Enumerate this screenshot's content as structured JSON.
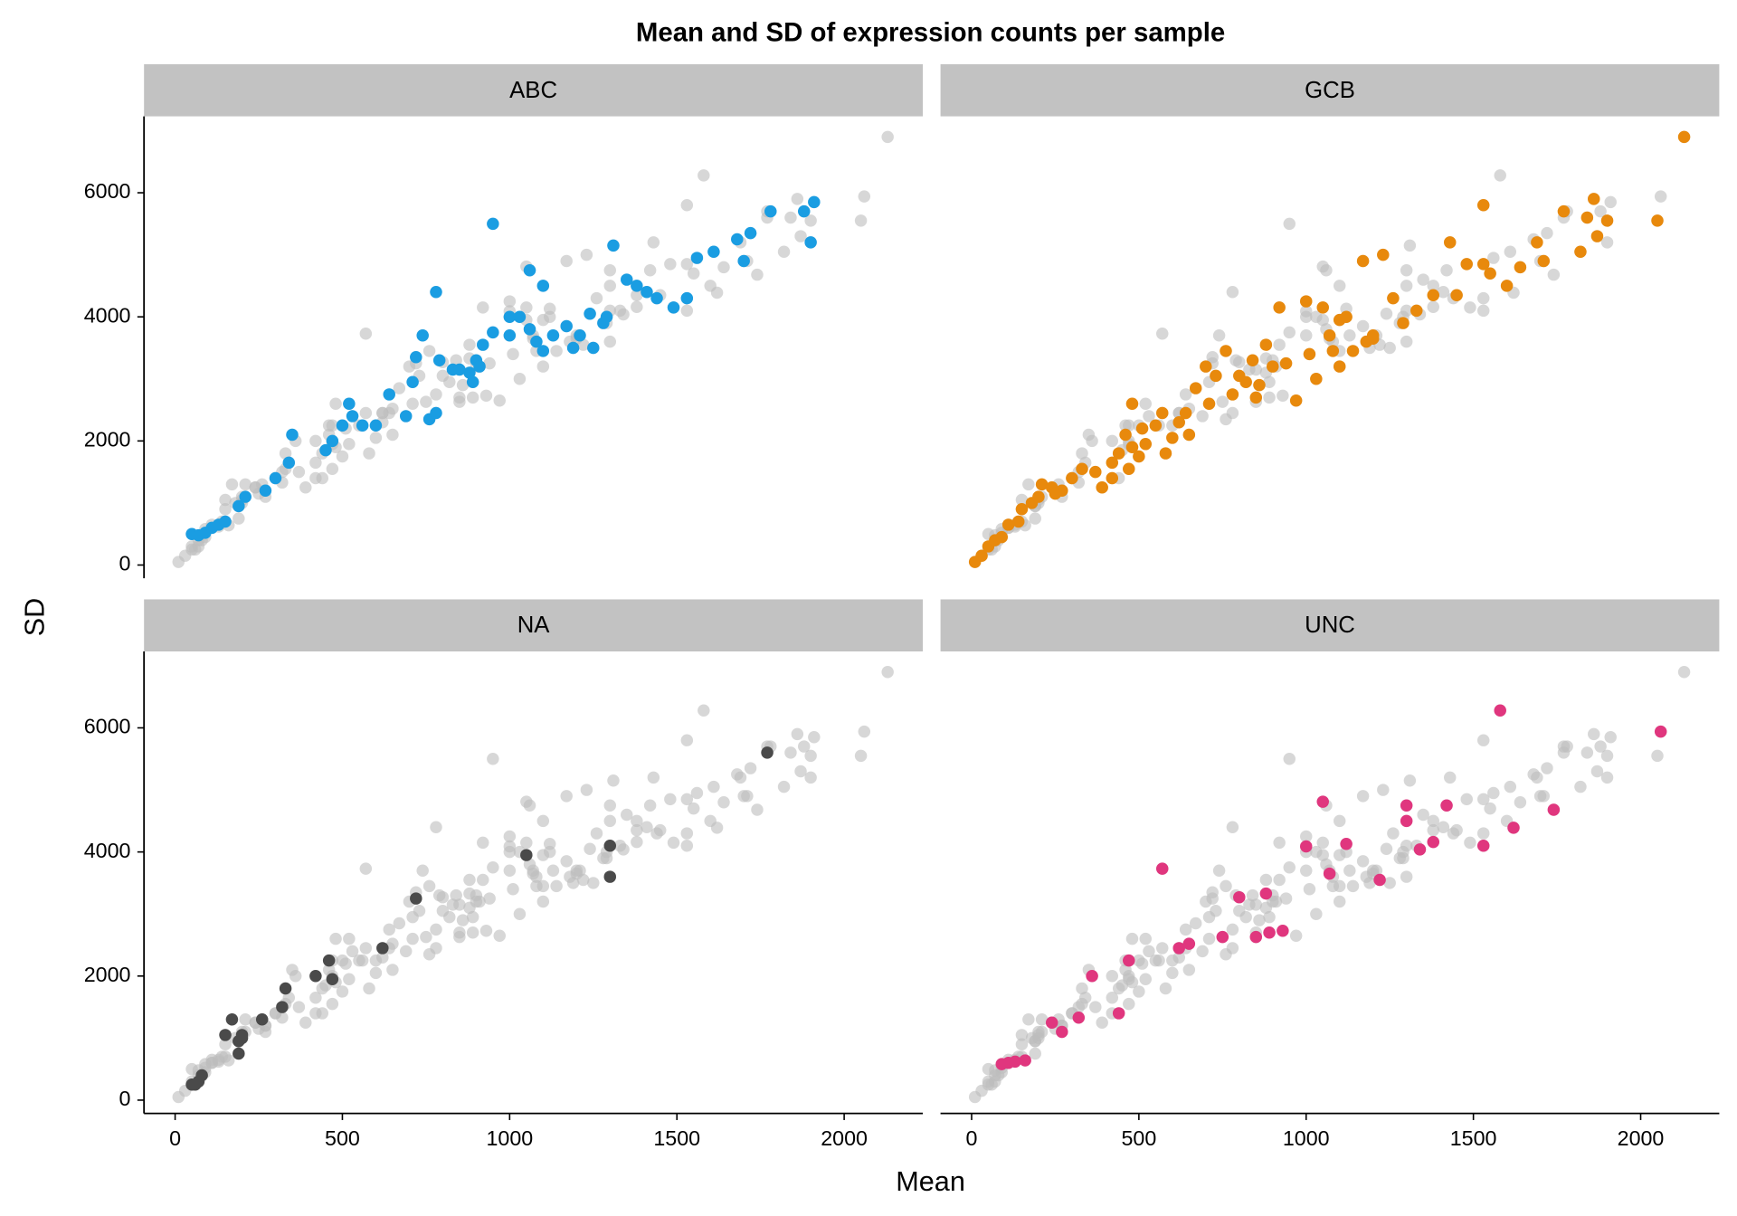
{
  "chart_data": {
    "type": "scatter",
    "title": "Mean and SD of expression counts per sample",
    "xlabel": "Mean",
    "ylabel": "SD",
    "xlim": [
      -93,
      2235
    ],
    "ylim": [
      -214,
      7232
    ],
    "xticks": [
      0,
      500,
      1000,
      1500,
      2000
    ],
    "yticks": [
      0,
      2000,
      4000,
      6000
    ],
    "background_color": "#bdbdbd",
    "series": [
      {
        "name": "ABC",
        "color": "#1a9de2",
        "x": [
          50,
          70,
          90,
          110,
          130,
          150,
          190,
          210,
          270,
          300,
          340,
          350,
          450,
          470,
          500,
          520,
          530,
          560,
          600,
          640,
          690,
          710,
          720,
          740,
          760,
          780,
          780,
          790,
          830,
          850,
          880,
          890,
          900,
          910,
          920,
          950,
          950,
          1000,
          1000,
          1030,
          1060,
          1060,
          1080,
          1100,
          1100,
          1130,
          1170,
          1190,
          1210,
          1240,
          1250,
          1280,
          1290,
          1310,
          1350,
          1380,
          1410,
          1440,
          1490,
          1530,
          1560,
          1610,
          1680,
          1700,
          1720,
          1780,
          1880,
          1900,
          1910
        ],
        "y": [
          500,
          480,
          520,
          600,
          650,
          700,
          950,
          1100,
          1200,
          1400,
          1650,
          2100,
          1850,
          2000,
          2250,
          2600,
          2400,
          2250,
          2250,
          2750,
          2400,
          2950,
          3350,
          3700,
          2350,
          2450,
          4400,
          3300,
          3150,
          3150,
          3100,
          2950,
          3300,
          3200,
          3550,
          5500,
          3750,
          3700,
          4000,
          4000,
          4750,
          3800,
          3600,
          4500,
          3450,
          3700,
          3850,
          3500,
          3700,
          4050,
          3500,
          3900,
          4000,
          5150,
          4600,
          4500,
          4400,
          4300,
          4150,
          4300,
          4950,
          5050,
          5250,
          4900,
          5350,
          5700,
          5700,
          5200,
          5850
        ]
      },
      {
        "name": "GCB",
        "color": "#e8890c",
        "x": [
          10,
          30,
          50,
          70,
          90,
          110,
          140,
          150,
          180,
          200,
          210,
          240,
          270,
          300,
          330,
          370,
          390,
          420,
          440,
          460,
          470,
          480,
          480,
          500,
          510,
          520,
          550,
          570,
          580,
          600,
          620,
          640,
          670,
          700,
          710,
          730,
          760,
          780,
          800,
          820,
          840,
          860,
          880,
          900,
          920,
          940,
          970,
          1000,
          1010,
          1030,
          1050,
          1070,
          1080,
          1100,
          1120,
          1140,
          1170,
          1180,
          1200,
          1230,
          1260,
          1290,
          1330,
          1380,
          1430,
          1450,
          1480,
          1530,
          1550,
          1600,
          1640,
          1690,
          1710,
          1770,
          1820,
          1840,
          1870,
          1900,
          2050,
          2130,
          1860,
          1530,
          1100,
          1200,
          850,
          650,
          250,
          420
        ],
        "y": [
          50,
          150,
          300,
          400,
          450,
          650,
          700,
          900,
          1000,
          1100,
          1300,
          1250,
          1200,
          1400,
          1550,
          1500,
          1250,
          1650,
          1800,
          2100,
          1550,
          1900,
          2600,
          1750,
          2200,
          1950,
          2250,
          2450,
          1800,
          2050,
          2300,
          2450,
          2850,
          3200,
          2600,
          3050,
          3450,
          2750,
          3050,
          2950,
          3300,
          2900,
          3550,
          3200,
          4150,
          3250,
          2650,
          4250,
          3400,
          3000,
          4150,
          3700,
          3450,
          3950,
          4000,
          3450,
          4900,
          3600,
          3700,
          5000,
          4300,
          3900,
          4100,
          4350,
          5200,
          4350,
          4850,
          5800,
          4700,
          4500,
          4800,
          5200,
          4900,
          5700,
          5050,
          5600,
          5300,
          5550,
          5550,
          6900,
          5900,
          4850,
          3200,
          3650,
          2700,
          2100,
          1150,
          1400
        ]
      },
      {
        "name": "NA",
        "color": "#4a4a4a",
        "x": [
          50,
          70,
          80,
          60,
          150,
          170,
          190,
          200,
          190,
          200,
          260,
          320,
          330,
          420,
          460,
          470,
          620,
          720,
          1050,
          1300,
          1300,
          1770
        ],
        "y": [
          250,
          300,
          400,
          250,
          1050,
          1300,
          950,
          1050,
          750,
          1000,
          1300,
          1500,
          1800,
          2000,
          2250,
          1950,
          2450,
          3250,
          3950,
          3600,
          4100,
          5600
        ]
      },
      {
        "name": "UNC",
        "color": "#e0367e",
        "x": [
          90,
          110,
          130,
          160,
          240,
          270,
          320,
          360,
          440,
          470,
          570,
          620,
          650,
          750,
          800,
          850,
          880,
          890,
          930,
          1000,
          1050,
          1070,
          1120,
          1220,
          1300,
          1300,
          1340,
          1380,
          1420,
          1530,
          1580,
          1620,
          1740,
          2060
        ],
        "y": [
          580,
          600,
          620,
          640,
          1250,
          1100,
          1330,
          2000,
          1400,
          2250,
          3730,
          2450,
          2520,
          2630,
          3270,
          2630,
          3330,
          2700,
          2730,
          4090,
          4810,
          3650,
          4130,
          3550,
          4750,
          4500,
          4040,
          4160,
          4750,
          4100,
          6280,
          4390,
          4680,
          5940
        ]
      }
    ]
  }
}
